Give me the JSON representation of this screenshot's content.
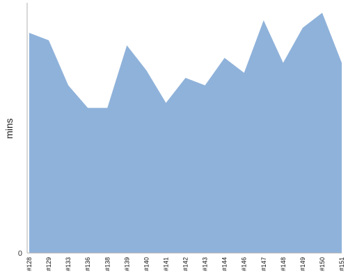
{
  "chart_data": {
    "type": "area",
    "title": "",
    "xlabel": "",
    "ylabel": "mins",
    "categories": [
      "#128",
      "#129",
      "#133",
      "#136",
      "#138",
      "#139",
      "#140",
      "#141",
      "#142",
      "#143",
      "#144",
      "#146",
      "#147",
      "#148",
      "#149",
      "#150",
      "#151"
    ],
    "values": [
      88,
      85,
      67,
      58,
      58,
      83,
      73,
      60,
      70,
      67,
      78,
      72,
      93,
      76,
      90,
      96,
      76
    ],
    "y_ticks": [
      {
        "value": 0,
        "label": "0"
      }
    ],
    "ylim": [
      0,
      100
    ],
    "grid": false,
    "legend": "none",
    "colors": {
      "area": "#8fb2da",
      "axis": "#b0b0b0"
    }
  }
}
